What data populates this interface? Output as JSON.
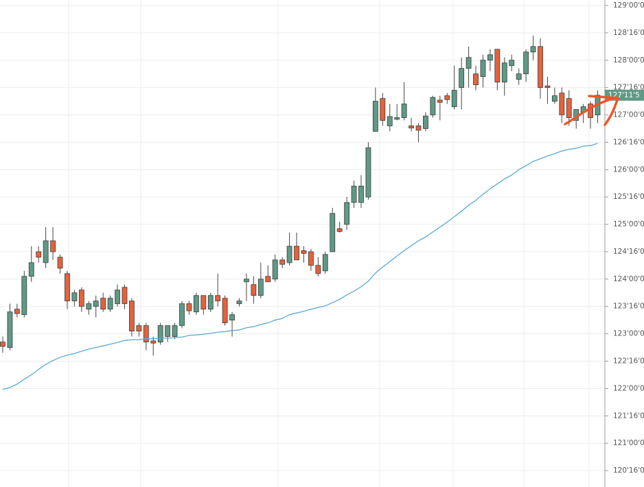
{
  "chart_data": {
    "type": "candlestick",
    "ylim": [
      120.2,
      129.1
    ],
    "yticks": [
      {
        "value": 120.5,
        "label": "120'16'0"
      },
      {
        "value": 121,
        "label": "121'00'0"
      },
      {
        "value": 121.5,
        "label": "121'16'0"
      },
      {
        "value": 122,
        "label": "122'00'0"
      },
      {
        "value": 122.5,
        "label": "122'16'0"
      },
      {
        "value": 123,
        "label": "123'00'0"
      },
      {
        "value": 123.5,
        "label": "123'16'0"
      },
      {
        "value": 124,
        "label": "124'00'0"
      },
      {
        "value": 124.5,
        "label": "124'16'0"
      },
      {
        "value": 125,
        "label": "125'00'0"
      },
      {
        "value": 125.5,
        "label": "125'16'0"
      },
      {
        "value": 126,
        "label": "126'00'0"
      },
      {
        "value": 126.5,
        "label": "126'16'0"
      },
      {
        "value": 127,
        "label": "127'00'0"
      },
      {
        "value": 127.5,
        "label": "127'16'0"
      },
      {
        "value": 128,
        "label": "128'00'0"
      },
      {
        "value": 128.5,
        "label": "128'16'0"
      },
      {
        "value": 129,
        "label": "129'00'0"
      }
    ],
    "grid": true,
    "up_color": "#5f9a86",
    "down_color": "#e5623c",
    "open": [
      122.85,
      122.75,
      123.45,
      123.35,
      124.05,
      124.5,
      124.3,
      124.7,
      124.4,
      124.1,
      123.6,
      123.8,
      123.45,
      123.5,
      123.65,
      123.45,
      123.55,
      123.85,
      123.6,
      123.15,
      123.15,
      122.87,
      122.85,
      122.95,
      122.95,
      123.15,
      123.55,
      123.4,
      123.7,
      123.45,
      123.7,
      123.65,
      123.25,
      123.55,
      123.95,
      123.9,
      123.7,
      124.05,
      124.0,
      124.35,
      124.3,
      124.6,
      124.52,
      124.5,
      124.25,
      124.15,
      124.5,
      124.92,
      125.0,
      125.4,
      125.4,
      125.5,
      126.7,
      127.3,
      126.8,
      126.92,
      126.95,
      126.8,
      126.8,
      126.75,
      127.0,
      127.27,
      127.35,
      127.15,
      127.5,
      127.85,
      127.75,
      127.7,
      128.0,
      128.2,
      127.6,
      127.9,
      127.65,
      127.75,
      128.15,
      128.25,
      127.53,
      127.25,
      127.4,
      127.3,
      126.9,
      127.05,
      127.2,
      127.0
    ],
    "high": [
      122.95,
      123.55,
      123.55,
      124.15,
      124.6,
      124.6,
      124.95,
      124.95,
      124.45,
      124.15,
      123.8,
      123.85,
      123.6,
      123.7,
      123.75,
      123.7,
      123.9,
      123.9,
      123.65,
      123.2,
      123.2,
      122.95,
      123.2,
      123.1,
      123.2,
      123.6,
      123.6,
      123.75,
      123.7,
      123.75,
      124.1,
      123.7,
      123.4,
      123.65,
      124.1,
      124.05,
      124.3,
      124.25,
      124.45,
      124.4,
      124.85,
      124.85,
      124.6,
      124.55,
      124.4,
      124.5,
      125.3,
      125.05,
      125.5,
      125.8,
      125.9,
      126.5,
      127.5,
      127.4,
      127.2,
      127.2,
      127.6,
      126.95,
      126.85,
      127.05,
      127.35,
      127.35,
      127.4,
      127.9,
      128.05,
      128.25,
      127.9,
      128.1,
      128.2,
      128.2,
      128.05,
      128.1,
      127.85,
      128.2,
      128.45,
      128.4,
      127.7,
      127.5,
      127.5,
      127.45,
      127.1,
      127.2,
      127.25,
      127.45
    ],
    "low": [
      122.65,
      122.7,
      123.3,
      123.3,
      123.95,
      124.3,
      124.2,
      124.35,
      124.1,
      123.45,
      123.5,
      123.4,
      123.35,
      123.3,
      123.4,
      123.4,
      123.5,
      123.45,
      122.95,
      122.95,
      122.7,
      122.6,
      122.8,
      122.85,
      122.9,
      123.1,
      123.35,
      123.35,
      123.35,
      123.4,
      123.5,
      123.15,
      122.95,
      123.5,
      123.6,
      123.55,
      123.65,
      123.95,
      123.95,
      124.2,
      124.25,
      124.35,
      124.3,
      124.15,
      124.05,
      124.1,
      124.5,
      124.85,
      124.9,
      125.3,
      125.3,
      125.45,
      126.7,
      126.8,
      126.7,
      126.9,
      126.9,
      126.7,
      126.5,
      126.7,
      126.95,
      126.9,
      127.2,
      127.1,
      127.1,
      127.5,
      127.45,
      127.5,
      127.8,
      127.45,
      127.35,
      127.8,
      127.55,
      127.6,
      128.0,
      127.3,
      127.2,
      127.2,
      126.85,
      126.8,
      126.75,
      126.85,
      126.75,
      126.85
    ],
    "close": [
      122.77,
      123.4,
      123.37,
      124.05,
      124.3,
      124.4,
      124.7,
      124.5,
      124.2,
      123.6,
      123.75,
      123.5,
      123.55,
      123.6,
      123.45,
      123.65,
      123.8,
      123.55,
      123.05,
      123.05,
      122.85,
      122.83,
      123.15,
      123.15,
      123.15,
      123.55,
      123.42,
      123.7,
      123.45,
      123.7,
      123.6,
      123.2,
      123.35,
      123.6,
      124.0,
      123.7,
      124.0,
      123.95,
      124.35,
      124.27,
      124.6,
      124.35,
      124.47,
      124.25,
      124.1,
      124.45,
      125.2,
      124.87,
      125.4,
      125.7,
      125.7,
      126.4,
      127.25,
      126.9,
      126.97,
      126.95,
      127.2,
      126.76,
      126.72,
      126.98,
      127.32,
      127.23,
      127.28,
      127.45,
      127.85,
      128.05,
      127.55,
      128.0,
      128.1,
      127.6,
      127.95,
      128.0,
      127.75,
      128.15,
      128.25,
      127.5,
      127.5,
      127.35,
      127.0,
      126.95,
      127.1,
      127.15,
      126.95,
      127.36
    ],
    "ma_color": "#5aa7d6",
    "ma": [
      121.98,
      122.02,
      122.08,
      122.17,
      122.25,
      122.35,
      122.44,
      122.51,
      122.57,
      122.61,
      122.64,
      122.68,
      122.72,
      122.75,
      122.78,
      122.81,
      122.84,
      122.88,
      122.89,
      122.89,
      122.91,
      122.91,
      122.92,
      122.92,
      122.93,
      122.94,
      122.97,
      122.98,
      122.99,
      123.01,
      123.03,
      123.04,
      123.06,
      123.07,
      123.11,
      123.13,
      123.17,
      123.2,
      123.25,
      123.28,
      123.35,
      123.38,
      123.41,
      123.45,
      123.48,
      123.51,
      123.57,
      123.63,
      123.71,
      123.78,
      123.86,
      123.96,
      124.11,
      124.22,
      124.32,
      124.42,
      124.52,
      124.61,
      124.7,
      124.77,
      124.86,
      124.95,
      125.04,
      125.14,
      125.24,
      125.35,
      125.44,
      125.55,
      125.65,
      125.74,
      125.83,
      125.9,
      126.0,
      126.07,
      126.15,
      126.2,
      126.25,
      126.29,
      126.34,
      126.37,
      126.39,
      126.43,
      126.44,
      126.48
    ],
    "last_price": {
      "value": 127.36,
      "label": "127'11'5"
    },
    "last_price_color": "#5f9a86"
  }
}
